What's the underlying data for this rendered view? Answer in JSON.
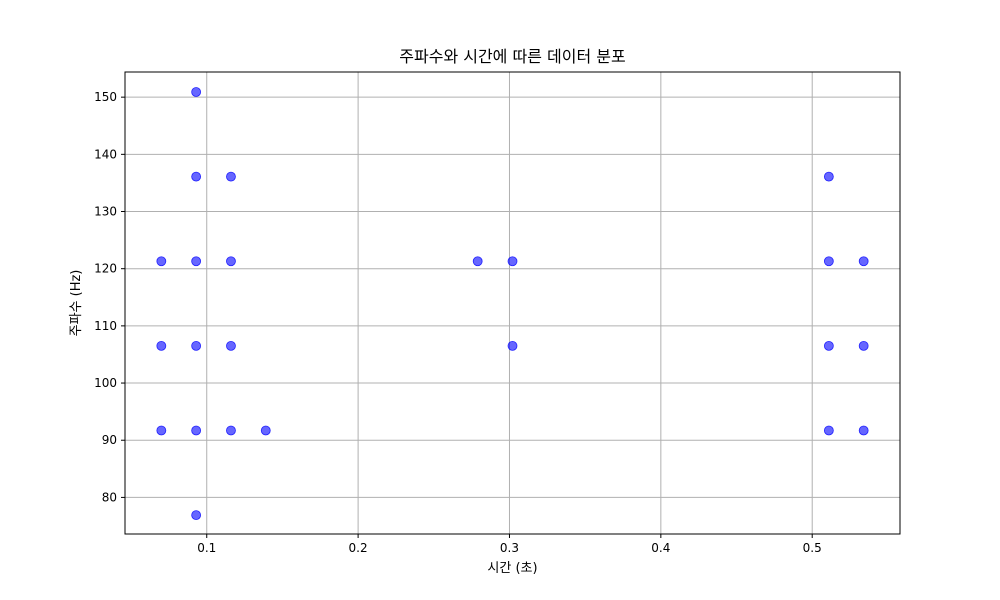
{
  "chart_data": {
    "type": "scatter",
    "title": "주파수와 시간에 따른 데이터 분포",
    "xlabel": "시간 (초)",
    "ylabel": "주파수 (Hz)",
    "xlim": [
      0.046,
      0.558
    ],
    "ylim": [
      73.6,
      154.4
    ],
    "xticks": [
      0.1,
      0.2,
      0.3,
      0.4,
      0.5
    ],
    "xtick_labels": [
      "0.1",
      "0.2",
      "0.3",
      "0.4",
      "0.5"
    ],
    "yticks": [
      80,
      90,
      100,
      110,
      120,
      130,
      140,
      150
    ],
    "ytick_labels": [
      "80",
      "90",
      "100",
      "110",
      "120",
      "130",
      "140",
      "150"
    ],
    "grid": true,
    "marker_color": "#0000ff",
    "marker_alpha": 0.6,
    "points": [
      {
        "x": 0.07,
        "y": 121.3
      },
      {
        "x": 0.07,
        "y": 106.5
      },
      {
        "x": 0.07,
        "y": 91.7
      },
      {
        "x": 0.093,
        "y": 150.9
      },
      {
        "x": 0.093,
        "y": 136.1
      },
      {
        "x": 0.093,
        "y": 121.3
      },
      {
        "x": 0.093,
        "y": 106.5
      },
      {
        "x": 0.093,
        "y": 91.7
      },
      {
        "x": 0.093,
        "y": 76.9
      },
      {
        "x": 0.116,
        "y": 136.1
      },
      {
        "x": 0.116,
        "y": 121.3
      },
      {
        "x": 0.116,
        "y": 106.5
      },
      {
        "x": 0.116,
        "y": 91.7
      },
      {
        "x": 0.139,
        "y": 91.7
      },
      {
        "x": 0.279,
        "y": 121.3
      },
      {
        "x": 0.302,
        "y": 121.3
      },
      {
        "x": 0.302,
        "y": 106.5
      },
      {
        "x": 0.511,
        "y": 136.1
      },
      {
        "x": 0.511,
        "y": 121.3
      },
      {
        "x": 0.511,
        "y": 106.5
      },
      {
        "x": 0.511,
        "y": 91.7
      },
      {
        "x": 0.534,
        "y": 121.3
      },
      {
        "x": 0.534,
        "y": 106.5
      },
      {
        "x": 0.534,
        "y": 91.7
      }
    ]
  }
}
